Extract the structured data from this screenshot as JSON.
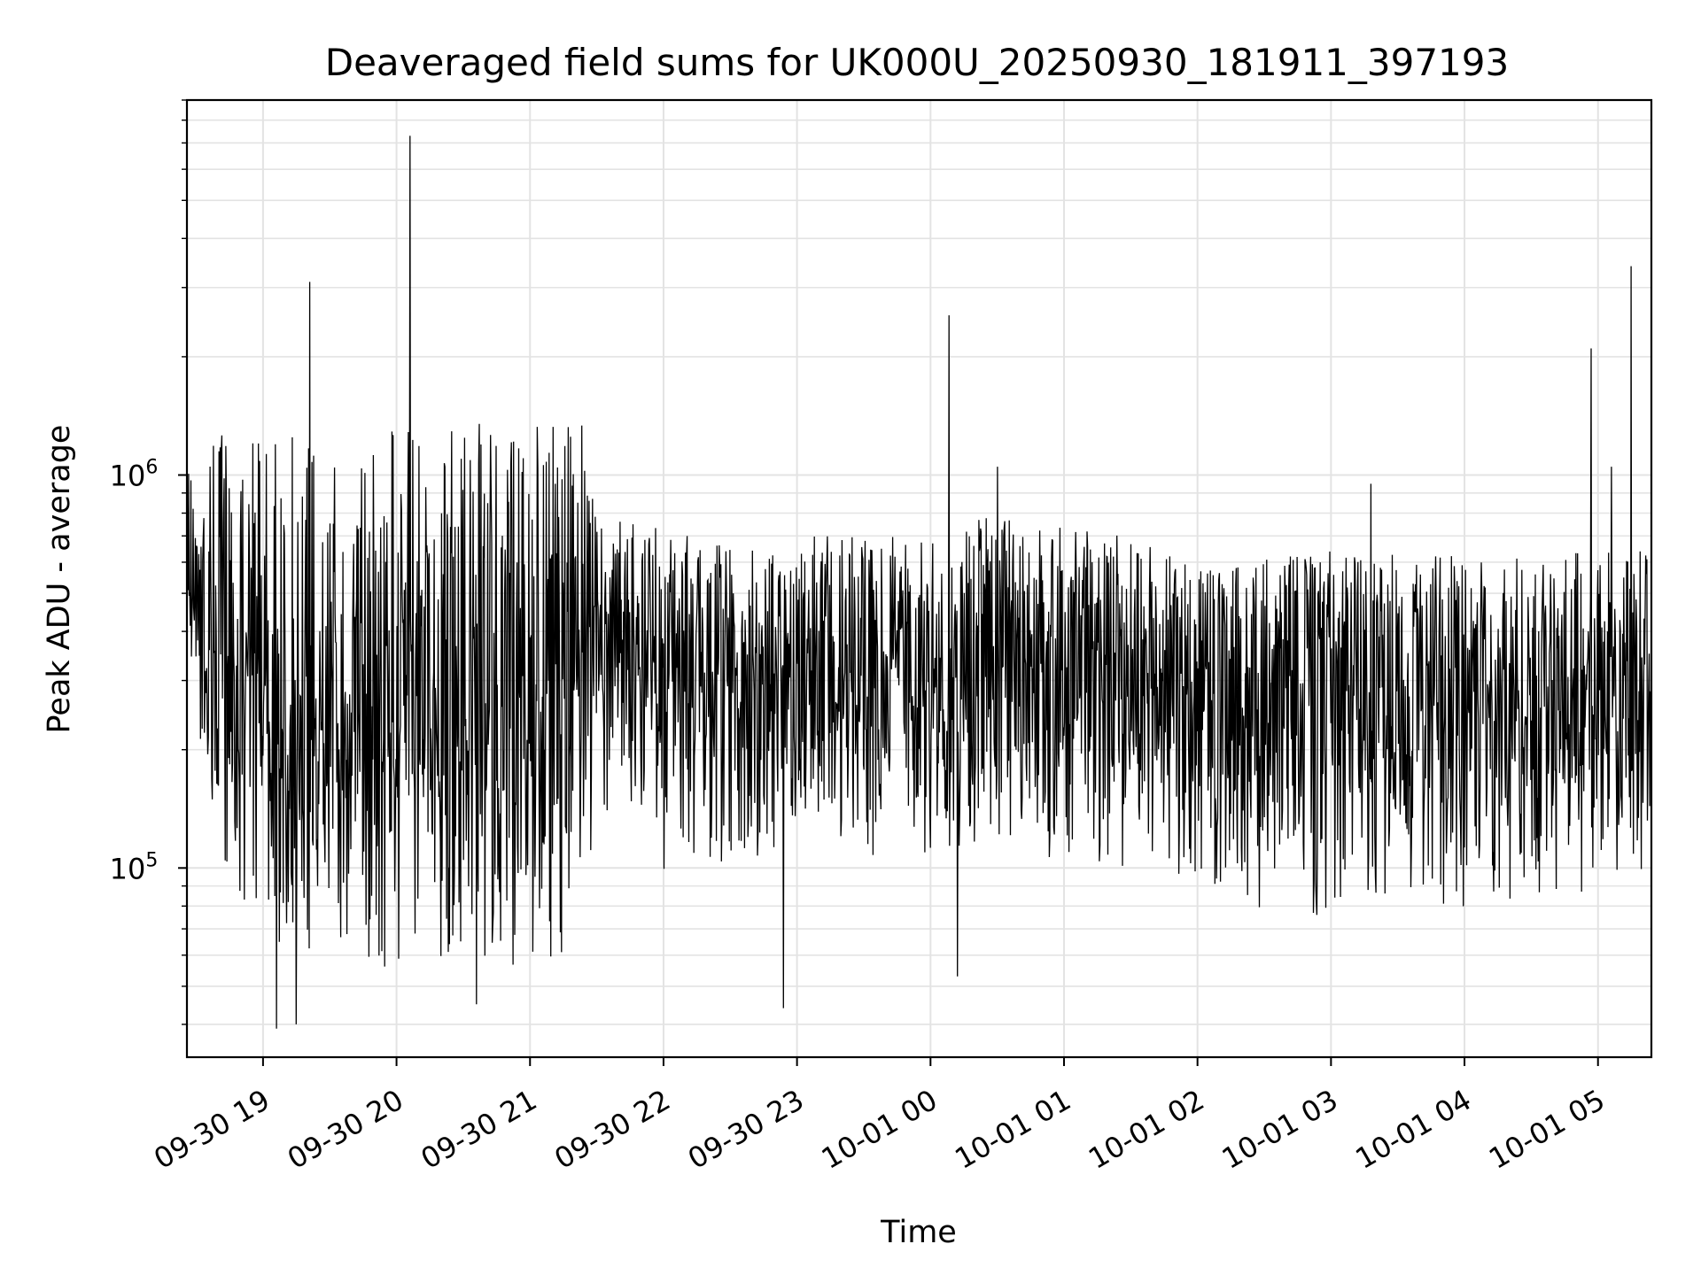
{
  "chart_data": {
    "type": "line",
    "title": "Deaveraged field sums for UK000U_20250930_181911_397193",
    "xlabel": "Time",
    "ylabel": "Peak ADU - average",
    "yscale": "log",
    "ylim": [
      33000,
      9000000
    ],
    "xlim_hours_from_0930_1800": [
      0.43,
      11.4
    ],
    "grid": true,
    "line_color": "#000000",
    "x_ticks": [
      {
        "label": "09-30 19",
        "hours": 1
      },
      {
        "label": "09-30 20",
        "hours": 2
      },
      {
        "label": "09-30 21",
        "hours": 3
      },
      {
        "label": "09-30 22",
        "hours": 4
      },
      {
        "label": "09-30 23",
        "hours": 5
      },
      {
        "label": "10-01 00",
        "hours": 6
      },
      {
        "label": "10-01 01",
        "hours": 7
      },
      {
        "label": "10-01 02",
        "hours": 8
      },
      {
        "label": "10-01 03",
        "hours": 9
      },
      {
        "label": "10-01 04",
        "hours": 10
      },
      {
        "label": "10-01 05",
        "hours": 11
      }
    ],
    "y_major_ticks": [
      {
        "base": "10",
        "exp": "5",
        "value": 100000
      },
      {
        "base": "10",
        "exp": "6",
        "value": 1000000
      }
    ],
    "envelope": [
      {
        "hours": 0.43,
        "median": 600000,
        "low": 420000,
        "high": 1200000
      },
      {
        "hours": 0.6,
        "median": 400000,
        "low": 110000,
        "high": 1300000
      },
      {
        "hours": 1.0,
        "median": 300000,
        "low": 60000,
        "high": 1350000
      },
      {
        "hours": 2.0,
        "median": 250000,
        "low": 55000,
        "high": 1350000
      },
      {
        "hours": 3.0,
        "median": 320000,
        "low": 55000,
        "high": 1400000
      },
      {
        "hours": 3.45,
        "median": 350000,
        "low": 65000,
        "high": 1380000
      },
      {
        "hours": 3.5,
        "median": 400000,
        "low": 100000,
        "high": 800000
      },
      {
        "hours": 4.5,
        "median": 330000,
        "low": 95000,
        "high": 700000
      },
      {
        "hours": 6.0,
        "median": 330000,
        "low": 110000,
        "high": 700000
      },
      {
        "hours": 6.5,
        "median": 380000,
        "low": 110000,
        "high": 800000
      },
      {
        "hours": 7.5,
        "median": 350000,
        "low": 100000,
        "high": 700000
      },
      {
        "hours": 8.0,
        "median": 280000,
        "low": 85000,
        "high": 580000
      },
      {
        "hours": 9.0,
        "median": 300000,
        "low": 70000,
        "high": 640000
      },
      {
        "hours": 10.0,
        "median": 290000,
        "low": 80000,
        "high": 620000
      },
      {
        "hours": 11.4,
        "median": 300000,
        "low": 90000,
        "high": 650000
      }
    ],
    "spikes": [
      {
        "hours": 1.35,
        "value": 3100000
      },
      {
        "hours": 2.1,
        "value": 7300000
      },
      {
        "hours": 6.14,
        "value": 2550000
      },
      {
        "hours": 10.95,
        "value": 2100000
      },
      {
        "hours": 11.25,
        "value": 3400000
      },
      {
        "hours": 6.5,
        "value": 1050000
      },
      {
        "hours": 9.3,
        "value": 950000
      },
      {
        "hours": 11.1,
        "value": 1050000
      }
    ],
    "dips": [
      {
        "hours": 4.9,
        "value": 44000
      },
      {
        "hours": 1.1,
        "value": 39000
      },
      {
        "hours": 1.25,
        "value": 40000
      },
      {
        "hours": 2.6,
        "value": 45000
      },
      {
        "hours": 6.2,
        "value": 53000
      }
    ]
  }
}
